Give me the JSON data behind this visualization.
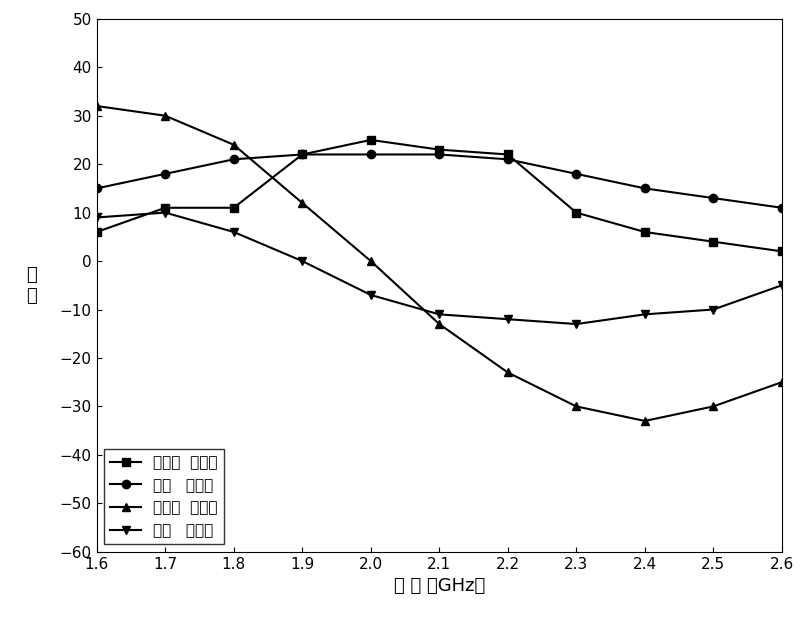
{
  "title": "",
  "xlabel": "频 率 （GHz）",
  "ylabel": "阻\n抗",
  "xlim": [
    1.6,
    2.6
  ],
  "ylim": [
    -60,
    50
  ],
  "xticks": [
    1.6,
    1.7,
    1.8,
    1.9,
    2.0,
    2.1,
    2.2,
    2.3,
    2.4,
    2.5,
    2.6
  ],
  "yticks": [
    -60,
    -50,
    -40,
    -30,
    -20,
    -10,
    0,
    10,
    20,
    30,
    40,
    50
  ],
  "series": [
    {
      "label": "传统方  案实部",
      "x": [
        1.6,
        1.7,
        1.8,
        1.9,
        2.0,
        2.1,
        2.2,
        2.3,
        2.4,
        2.5,
        2.6
      ],
      "y": [
        6,
        11,
        11,
        22,
        25,
        23,
        22,
        10,
        6,
        4,
        2
      ],
      "marker": "s",
      "color": "#000000",
      "linestyle": "-"
    },
    {
      "label": "新方   案实部",
      "x": [
        1.6,
        1.7,
        1.8,
        1.9,
        2.0,
        2.1,
        2.2,
        2.3,
        2.4,
        2.5,
        2.6
      ],
      "y": [
        15,
        18,
        21,
        22,
        22,
        22,
        21,
        18,
        15,
        13,
        11
      ],
      "marker": "o",
      "color": "#000000",
      "linestyle": "-"
    },
    {
      "label": "传统方  案虚部",
      "x": [
        1.6,
        1.7,
        1.8,
        1.9,
        2.0,
        2.1,
        2.2,
        2.3,
        2.4,
        2.5,
        2.6
      ],
      "y": [
        32,
        30,
        24,
        12,
        0,
        -13,
        -23,
        -30,
        -33,
        -30,
        -25
      ],
      "marker": "^",
      "color": "#000000",
      "linestyle": "-"
    },
    {
      "label": "新方   案虚部",
      "x": [
        1.6,
        1.7,
        1.8,
        1.9,
        2.0,
        2.1,
        2.2,
        2.3,
        2.4,
        2.5,
        2.6
      ],
      "y": [
        9,
        10,
        6,
        0,
        -7,
        -11,
        -12,
        -13,
        -11,
        -10,
        -5
      ],
      "marker": "v",
      "color": "#000000",
      "linestyle": "-"
    }
  ],
  "legend_loc": "lower left",
  "background_color": "#ffffff",
  "fig_width": 8.06,
  "fig_height": 6.27,
  "dpi": 100
}
